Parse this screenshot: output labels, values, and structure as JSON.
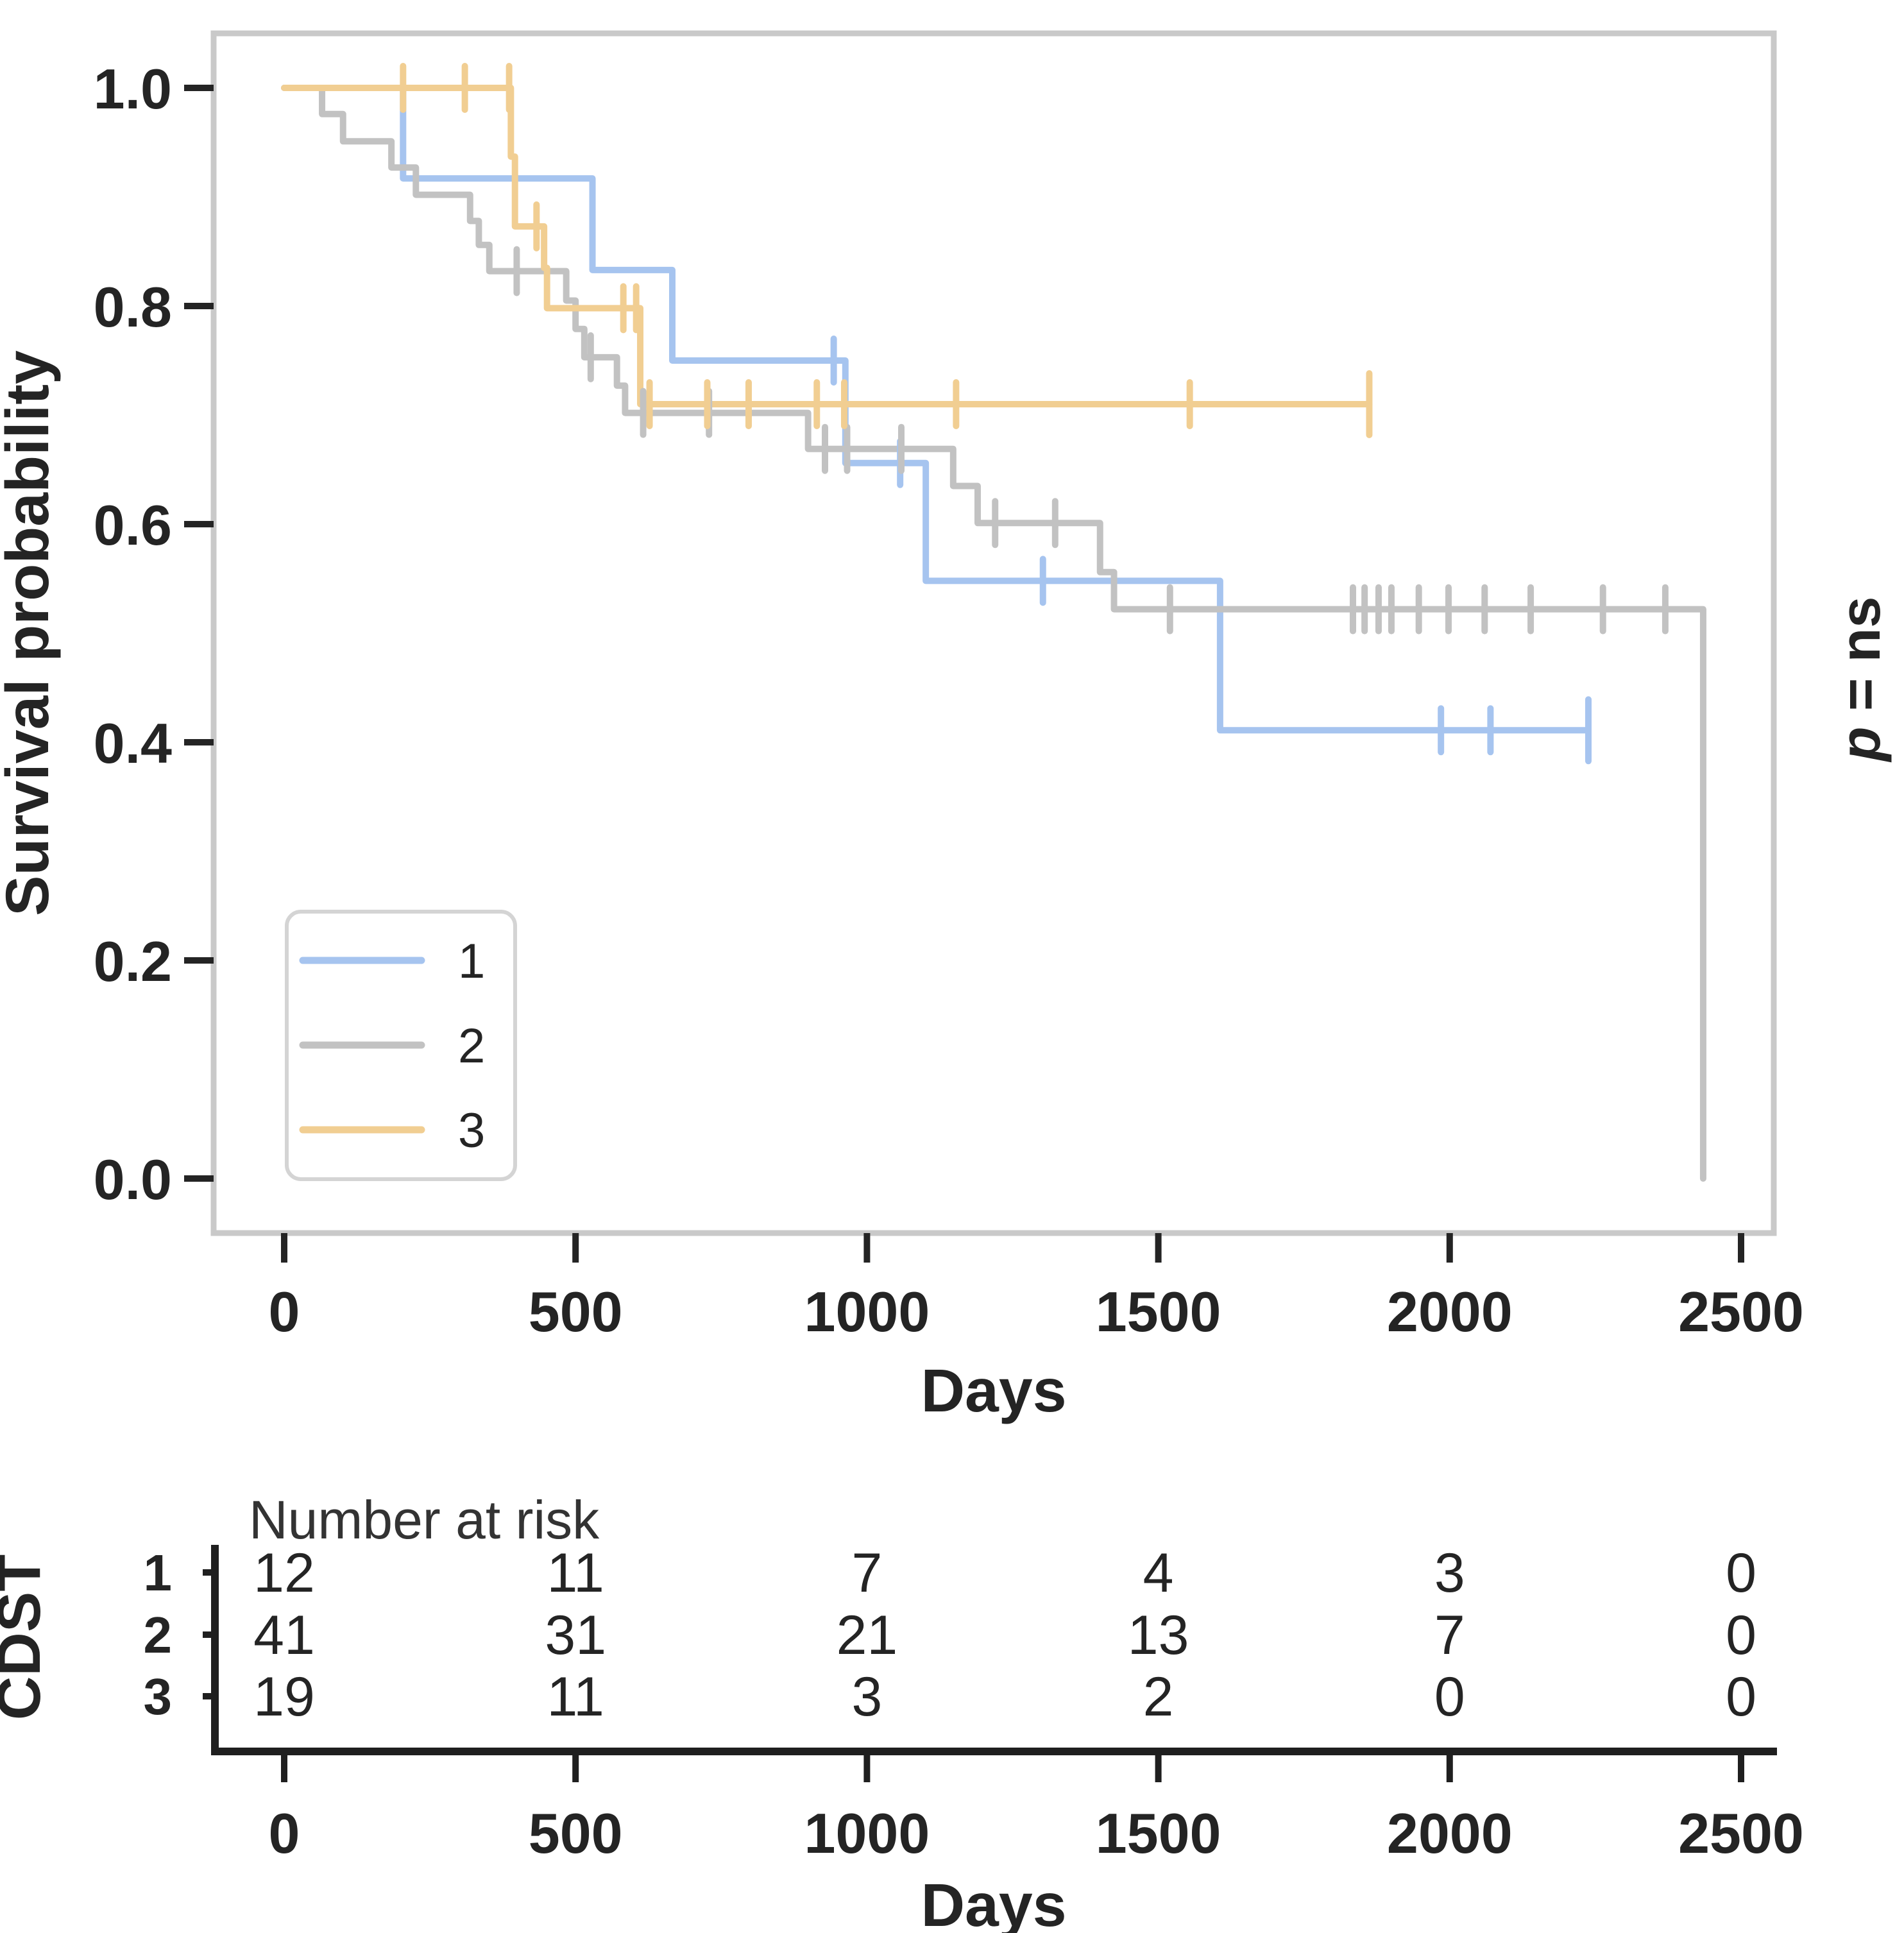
{
  "main_plot": {
    "y_axis": {
      "title": "Survival probability",
      "tick_labels": [
        "1.0",
        "0.8",
        "0.6",
        "0.4",
        "0.2",
        "0.0"
      ],
      "tick_values": [
        1.0,
        0.8,
        0.6,
        0.4,
        0.2,
        0.0
      ]
    },
    "x_axis": {
      "title": "Days",
      "tick_labels": [
        "0",
        "500",
        "1000",
        "1500",
        "2000",
        "2500"
      ],
      "tick_values": [
        0,
        500,
        1000,
        1500,
        2000,
        2500
      ]
    },
    "annotation": {
      "p_symbol": "p",
      "p_rest": " = ns"
    },
    "legend": {
      "items": [
        {
          "label": "1",
          "color": "#a6c4ef"
        },
        {
          "label": "2",
          "color": "#c2c2c2"
        },
        {
          "label": "3",
          "color": "#f1ce92"
        }
      ]
    }
  },
  "chart_data": {
    "type": "line",
    "subtype": "kaplan-meier-step",
    "title": "",
    "xlabel": "Days",
    "ylabel": "Survival probability",
    "xlim": [
      0,
      2500
    ],
    "ylim": [
      0.0,
      1.0
    ],
    "grid": false,
    "legend_position": "lower-left-inside",
    "p_value_text": "p = ns",
    "series": [
      {
        "name": "1",
        "color": "#a6c4ef",
        "steps": [
          [
            0,
            1.0
          ],
          [
            204,
            0.917
          ],
          [
            529,
            0.833
          ],
          [
            666,
            0.75
          ],
          [
            963,
            0.656
          ],
          [
            1101,
            0.548
          ],
          [
            1606,
            0.411
          ]
        ],
        "end_day": 2238,
        "censors": [
          [
            943,
            0.75
          ],
          [
            1057,
            0.656
          ],
          [
            1302,
            0.548
          ],
          [
            1985,
            0.411
          ],
          [
            2070,
            0.411
          ],
          [
            2238,
            0.411
          ]
        ]
      },
      {
        "name": "2",
        "color": "#c2c2c2",
        "steps": [
          [
            0,
            1.0
          ],
          [
            65,
            0.976
          ],
          [
            101,
            0.951
          ],
          [
            184,
            0.927
          ],
          [
            226,
            0.902
          ],
          [
            319,
            0.878
          ],
          [
            334,
            0.856
          ],
          [
            352,
            0.832
          ],
          [
            484,
            0.805
          ],
          [
            500,
            0.779
          ],
          [
            515,
            0.753
          ],
          [
            571,
            0.727
          ],
          [
            585,
            0.702
          ],
          [
            899,
            0.669
          ],
          [
            1148,
            0.635
          ],
          [
            1190,
            0.601
          ],
          [
            1400,
            0.556
          ],
          [
            1424,
            0.522
          ],
          [
            2435,
            0.0
          ]
        ],
        "end_day": 2435,
        "censors": [
          [
            399,
            0.832
          ],
          [
            526,
            0.753
          ],
          [
            616,
            0.702
          ],
          [
            729,
            0.702
          ],
          [
            928,
            0.669
          ],
          [
            966,
            0.669
          ],
          [
            1059,
            0.669
          ],
          [
            1220,
            0.601
          ],
          [
            1323,
            0.601
          ],
          [
            1520,
            0.522
          ],
          [
            1834,
            0.522
          ],
          [
            1854,
            0.522
          ],
          [
            1878,
            0.522
          ],
          [
            1900,
            0.522
          ],
          [
            1947,
            0.522
          ],
          [
            1998,
            0.522
          ],
          [
            2060,
            0.522
          ],
          [
            2139,
            0.522
          ],
          [
            2263,
            0.522
          ],
          [
            2370,
            0.522
          ]
        ]
      },
      {
        "name": "3",
        "color": "#f1ce92",
        "steps": [
          [
            0,
            1.0
          ],
          [
            389,
            0.937
          ],
          [
            396,
            0.873
          ],
          [
            446,
            0.835
          ],
          [
            451,
            0.798
          ],
          [
            611,
            0.71
          ]
        ],
        "end_day": 1862,
        "censors": [
          [
            204,
            1.0
          ],
          [
            310,
            1.0
          ],
          [
            386,
            1.0
          ],
          [
            433,
            0.873
          ],
          [
            582,
            0.798
          ],
          [
            604,
            0.798
          ],
          [
            627,
            0.71
          ],
          [
            726,
            0.71
          ],
          [
            797,
            0.71
          ],
          [
            914,
            0.71
          ],
          [
            961,
            0.71
          ],
          [
            1153,
            0.71
          ],
          [
            1554,
            0.71
          ],
          [
            1862,
            0.71
          ]
        ]
      }
    ]
  },
  "risk_table": {
    "title": "Number at risk",
    "group_axis_label": "CDST",
    "x_label": "Days",
    "x_tick_labels": [
      "0",
      "500",
      "1000",
      "1500",
      "2000",
      "2500"
    ],
    "x_tick_values": [
      0,
      500,
      1000,
      1500,
      2000,
      2500
    ],
    "rows": [
      {
        "label": "1",
        "label_color": "#a9c6f0",
        "values": [
          12,
          11,
          7,
          4,
          3,
          0
        ]
      },
      {
        "label": "2",
        "label_color": "#d9d9d9",
        "values": [
          41,
          31,
          21,
          13,
          7,
          0
        ]
      },
      {
        "label": "3",
        "label_color": "#f3dba6",
        "values": [
          19,
          11,
          3,
          2,
          0,
          0
        ]
      }
    ]
  },
  "style_colors": {
    "plot_border": "#c9c9c9",
    "legend_border": "#d4d4d4",
    "axis_tick": "#242424",
    "risk_spine": "#1f1f1f"
  }
}
